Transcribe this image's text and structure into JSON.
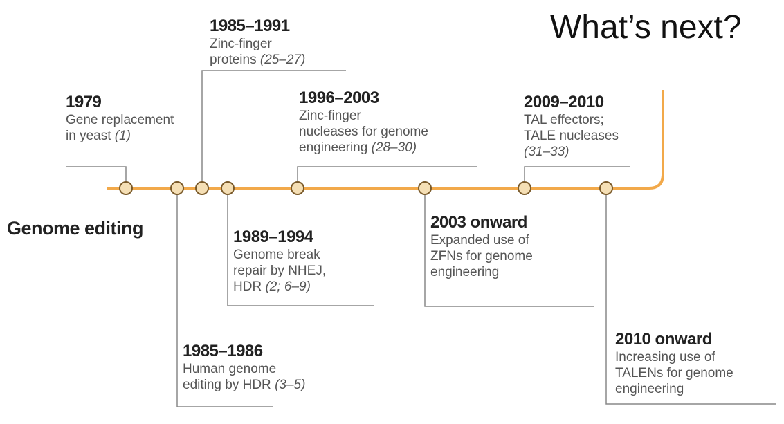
{
  "headline": "What’s next?",
  "axis_title": "Genome editing",
  "colors": {
    "track": "#f2a94a",
    "node_fill": "#f5dfb5",
    "node_stroke": "#7a5a2a",
    "connector": "#888888"
  },
  "events": [
    {
      "year": "1979",
      "desc": "Gene replacement\nin yeast",
      "refs": "(1)"
    },
    {
      "year": "1985–1986",
      "desc": "Human genome\nediting by HDR",
      "refs": "(3–5)"
    },
    {
      "year": "1985–1991",
      "desc": "Zinc-finger\nproteins",
      "refs": "(25–27)"
    },
    {
      "year": "1989–1994",
      "desc": "Genome break\nrepair by NHEJ,\nHDR",
      "refs": "(2; 6–9)"
    },
    {
      "year": "1996–2003",
      "desc": "Zinc-finger\nnucleases for genome\nengineering",
      "refs": "(28–30)"
    },
    {
      "year": "2003 onward",
      "desc": "Expanded use of\nZFNs for genome\nengineering",
      "refs": ""
    },
    {
      "year": "2009–2010",
      "desc": "TAL effectors;\nTALE nucleases\n",
      "refs": "(31–33)"
    },
    {
      "year": "2010 onward",
      "desc": "Increasing use of\nTALENs for genome\nengineering",
      "refs": ""
    }
  ]
}
